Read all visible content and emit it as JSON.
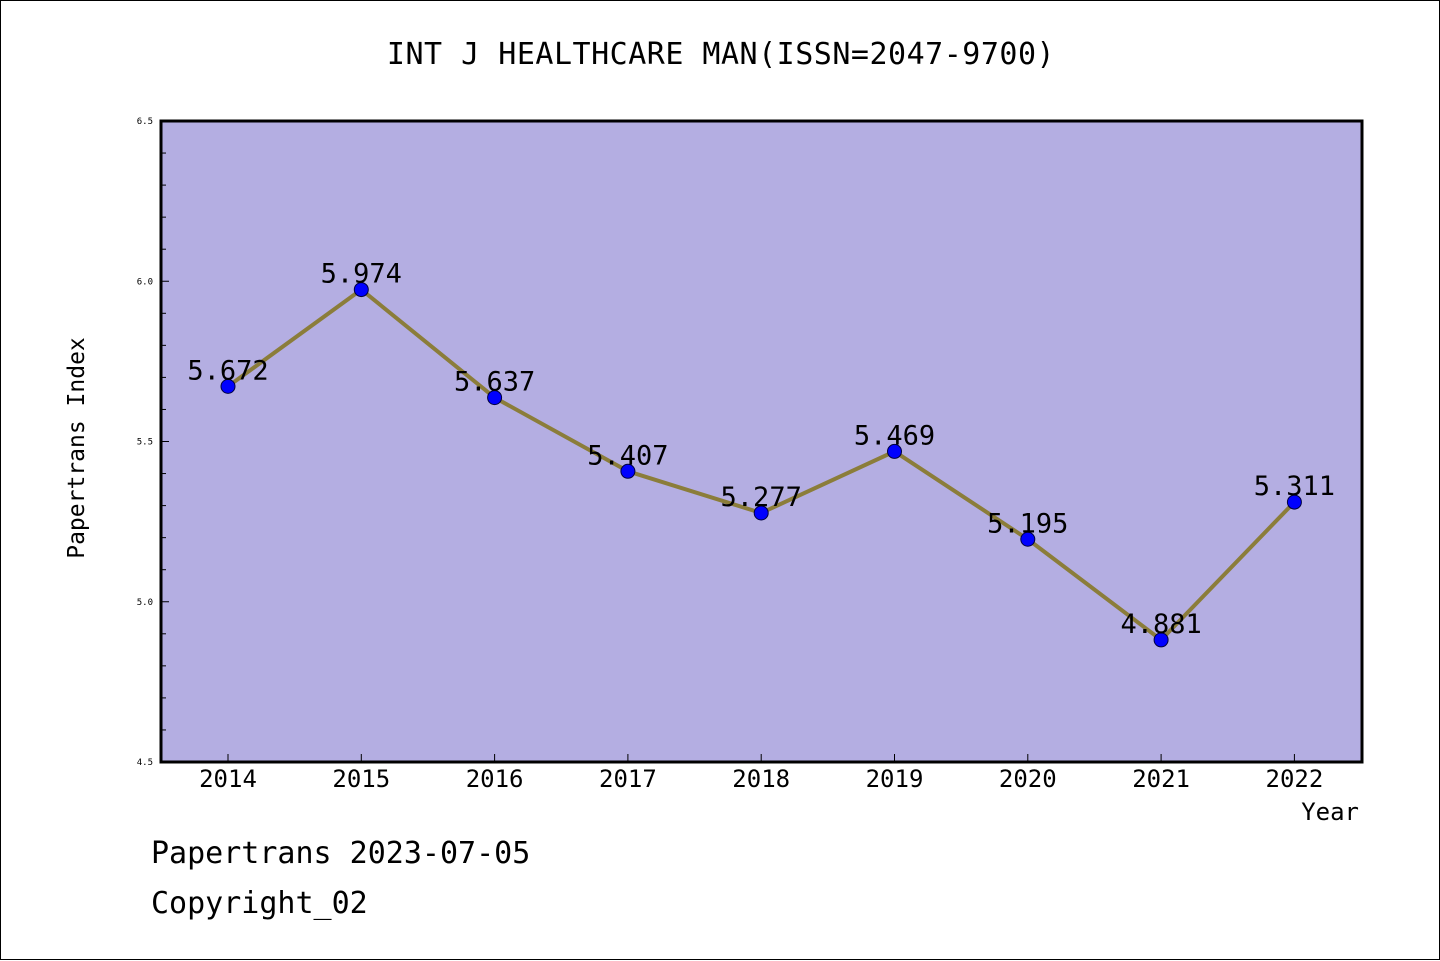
{
  "chart_data": {
    "type": "line",
    "title": "INT J HEALTHCARE MAN(ISSN=2047-9700)",
    "xlabel": "Year",
    "ylabel": "Papertrans Index",
    "categories": [
      "2014",
      "2015",
      "2016",
      "2017",
      "2018",
      "2019",
      "2020",
      "2021",
      "2022"
    ],
    "series": [
      {
        "values": [
          5.672,
          5.974,
          5.637,
          5.407,
          5.277,
          5.469,
          5.195,
          4.881,
          5.311
        ],
        "data_labels": [
          "5.672",
          "5.974",
          "5.637",
          "5.407",
          "5.277",
          "5.469",
          "5.195",
          "4.881",
          "5.311"
        ]
      }
    ],
    "ylim": [
      4.5,
      6.5
    ],
    "yticks": [
      "4.5",
      "5.0",
      "5.5",
      "6.0",
      "6.5"
    ],
    "grid": false,
    "legend": "none",
    "colors": {
      "plot_background": "#b4aee2",
      "line": "#8b7d3a",
      "marker": "#0000ff"
    }
  },
  "footer": {
    "line1": "Papertrans 2023-07-05",
    "line2": "Copyright_02"
  }
}
